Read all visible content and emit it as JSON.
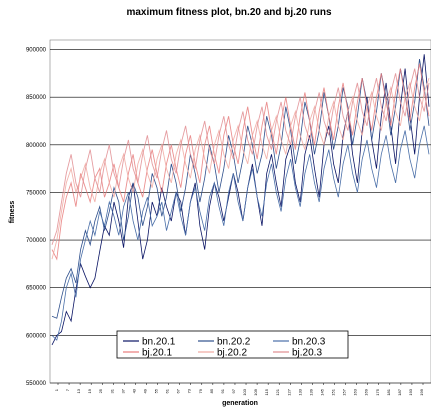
{
  "chart_data": {
    "type": "line",
    "title": "maximum fitness plot, bn.20 and bj.20 runs",
    "xlabel": "generation",
    "ylabel": "fitness",
    "ylim": [
      550000,
      910000
    ],
    "yticks": [
      550000,
      600000,
      650000,
      700000,
      750000,
      800000,
      850000,
      900000
    ],
    "ytick_labels": [
      "550000",
      "600000",
      "650000",
      "700000",
      "750000",
      "800000",
      "850000",
      "900000"
    ],
    "xtick_labels": [
      "1",
      "7",
      "13",
      "19",
      "25",
      "31",
      "37",
      "43",
      "49",
      "55",
      "61",
      "67",
      "73",
      "79",
      "85",
      "91",
      "97",
      "103",
      "109",
      "115",
      "121",
      "127",
      "133",
      "139",
      "145",
      "151",
      "157",
      "163",
      "169",
      "175",
      "181",
      "187",
      "193",
      "199"
    ],
    "grid": "horizontal",
    "legend_position": "bottom-center",
    "colors": {
      "bn.20.1": "#0a1464",
      "bn.20.2": "#2e4f8c",
      "bn.20.3": "#4a6fa8",
      "bj.20.1": "#e87c7c",
      "bj.20.2": "#f0a8a0",
      "bj.20.3": "#e08c90"
    },
    "series": [
      {
        "name": "bn.20.1",
        "values": [
          590000,
          600000,
          604000,
          625000,
          615000,
          648000,
          675000,
          662000,
          650000,
          660000,
          688000,
          715000,
          705000,
          740000,
          720000,
          692000,
          745000,
          760000,
          720000,
          680000,
          700000,
          740000,
          725000,
          755000,
          735000,
          720000,
          750000,
          740000,
          705000,
          740000,
          760000,
          715000,
          690000,
          735000,
          760000,
          745000,
          720000,
          745000,
          770000,
          750000,
          720000,
          755000,
          780000,
          745000,
          715000,
          770000,
          790000,
          760000,
          735000,
          785000,
          800000,
          760000,
          740000,
          790000,
          810000,
          775000,
          745000,
          800000,
          820000,
          780000,
          760000,
          810000,
          835000,
          790000,
          760000,
          815000,
          850000,
          805000,
          775000,
          830000,
          865000,
          820000,
          780000,
          840000,
          880000,
          830000,
          790000,
          850000,
          895000,
          840000
        ]
      },
      {
        "name": "bn.20.2",
        "values": [
          620000,
          618000,
          640000,
          660000,
          670000,
          655000,
          690000,
          710000,
          695000,
          720000,
          735000,
          710000,
          730000,
          755000,
          740000,
          700000,
          725000,
          760000,
          745000,
          715000,
          735000,
          770000,
          755000,
          725000,
          745000,
          780000,
          760000,
          730000,
          755000,
          790000,
          770000,
          740000,
          765000,
          800000,
          780000,
          750000,
          775000,
          810000,
          790000,
          760000,
          785000,
          820000,
          800000,
          770000,
          790000,
          830000,
          810000,
          775000,
          800000,
          840000,
          815000,
          780000,
          805000,
          845000,
          825000,
          790000,
          815000,
          855000,
          830000,
          795000,
          820000,
          860000,
          840000,
          800000,
          830000,
          870000,
          845000,
          805000,
          835000,
          875000,
          850000,
          810000,
          840000,
          880000,
          855000,
          815000,
          845000,
          890000,
          860000,
          820000
        ]
      },
      {
        "name": "bn.20.3",
        "values": [
          600000,
          595000,
          615000,
          650000,
          665000,
          640000,
          680000,
          700000,
          720000,
          705000,
          730000,
          715000,
          740000,
          725000,
          705000,
          735000,
          750000,
          720000,
          700000,
          730000,
          745000,
          715000,
          725000,
          740000,
          710000,
          730000,
          750000,
          725000,
          705000,
          740000,
          755000,
          730000,
          710000,
          745000,
          760000,
          735000,
          715000,
          750000,
          770000,
          740000,
          720000,
          755000,
          775000,
          745000,
          725000,
          760000,
          780000,
          750000,
          730000,
          765000,
          785000,
          755000,
          735000,
          770000,
          790000,
          760000,
          740000,
          775000,
          795000,
          765000,
          745000,
          780000,
          800000,
          770000,
          750000,
          785000,
          805000,
          775000,
          755000,
          790000,
          810000,
          780000,
          760000,
          795000,
          815000,
          785000,
          765000,
          800000,
          820000,
          790000
        ]
      },
      {
        "name": "bj.20.1",
        "values": [
          690000,
          680000,
          720000,
          745000,
          760000,
          735000,
          770000,
          755000,
          740000,
          765000,
          775000,
          745000,
          760000,
          780000,
          755000,
          740000,
          770000,
          790000,
          760000,
          745000,
          775000,
          795000,
          770000,
          750000,
          780000,
          800000,
          775000,
          755000,
          790000,
          810000,
          780000,
          760000,
          800000,
          820000,
          790000,
          770000,
          810000,
          830000,
          800000,
          780000,
          815000,
          840000,
          810000,
          785000,
          820000,
          845000,
          815000,
          790000,
          825000,
          850000,
          820000,
          795000,
          830000,
          855000,
          825000,
          800000,
          835000,
          860000,
          830000,
          805000,
          840000,
          865000,
          835000,
          810000,
          845000,
          870000,
          840000,
          815000,
          850000,
          875000,
          845000,
          820000,
          855000,
          880000,
          850000,
          825000,
          860000,
          885000,
          855000,
          830000
        ]
      },
      {
        "name": "bj.20.2",
        "values": [
          680000,
          700000,
          730000,
          760000,
          775000,
          750000,
          765000,
          780000,
          755000,
          740000,
          770000,
          785000,
          760000,
          745000,
          775000,
          790000,
          765000,
          750000,
          780000,
          795000,
          770000,
          755000,
          785000,
          800000,
          775000,
          760000,
          790000,
          805000,
          780000,
          765000,
          795000,
          810000,
          785000,
          770000,
          800000,
          815000,
          790000,
          775000,
          805000,
          820000,
          795000,
          780000,
          810000,
          825000,
          800000,
          785000,
          815000,
          830000,
          805000,
          790000,
          820000,
          835000,
          810000,
          795000,
          825000,
          840000,
          815000,
          800000,
          830000,
          845000,
          820000,
          805000,
          835000,
          850000,
          825000,
          810000,
          840000,
          855000,
          830000,
          815000,
          845000,
          860000,
          835000,
          820000,
          850000,
          865000,
          840000,
          825000,
          855000,
          870000
        ]
      },
      {
        "name": "bj.20.3",
        "values": [
          695000,
          710000,
          740000,
          770000,
          790000,
          760000,
          745000,
          775000,
          795000,
          765000,
          750000,
          780000,
          800000,
          770000,
          755000,
          785000,
          805000,
          775000,
          760000,
          790000,
          810000,
          780000,
          765000,
          795000,
          815000,
          785000,
          770000,
          800000,
          820000,
          790000,
          775000,
          805000,
          825000,
          795000,
          780000,
          810000,
          830000,
          800000,
          785000,
          815000,
          835000,
          805000,
          790000,
          820000,
          840000,
          810000,
          795000,
          825000,
          845000,
          815000,
          800000,
          830000,
          850000,
          820000,
          805000,
          835000,
          855000,
          825000,
          810000,
          840000,
          860000,
          830000,
          815000,
          845000,
          865000,
          835000,
          820000,
          850000,
          870000,
          840000,
          825000,
          855000,
          875000,
          845000,
          830000,
          860000,
          880000,
          850000,
          835000,
          865000
        ]
      }
    ]
  }
}
